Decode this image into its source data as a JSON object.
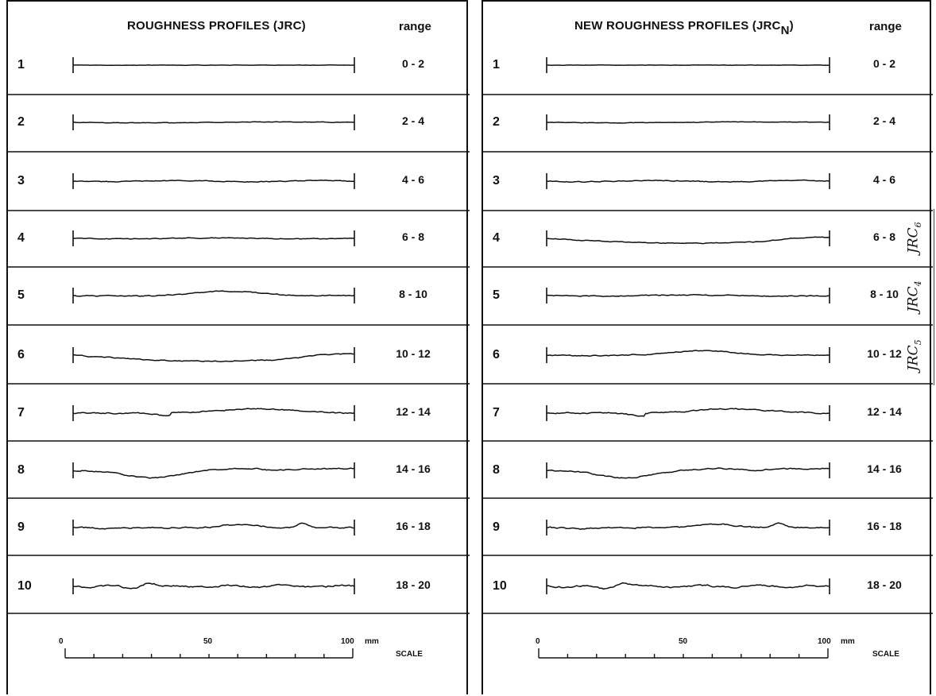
{
  "left": {
    "title": "ROUGHNESS PROFILES (JRC)",
    "range_header": "range"
  },
  "right": {
    "title_main": "NEW ROUGHNESS PROFILES (JRC",
    "title_sub": "N",
    "title_close": ")",
    "range_header": "range"
  },
  "rows": [
    {
      "num": "1",
      "range": "0 - 2"
    },
    {
      "num": "2",
      "range": "2 - 4"
    },
    {
      "num": "3",
      "range": "4 - 6"
    },
    {
      "num": "4",
      "range": "6 - 8"
    },
    {
      "num": "5",
      "range": "8 - 10"
    },
    {
      "num": "6",
      "range": "10 - 12"
    },
    {
      "num": "7",
      "range": "12 - 14"
    },
    {
      "num": "8",
      "range": "14 - 16"
    },
    {
      "num": "9",
      "range": "16 - 18"
    },
    {
      "num": "10",
      "range": "18 - 20"
    }
  ],
  "scale": {
    "tick_0": "0",
    "tick_50": "50",
    "tick_100": "100",
    "unit": "mm",
    "label": "SCALE"
  },
  "side_labels": [
    {
      "base": "JRC",
      "sub": "6"
    },
    {
      "base": "JRC",
      "sub": "4"
    },
    {
      "base": "JRC",
      "sub": "5"
    }
  ]
}
